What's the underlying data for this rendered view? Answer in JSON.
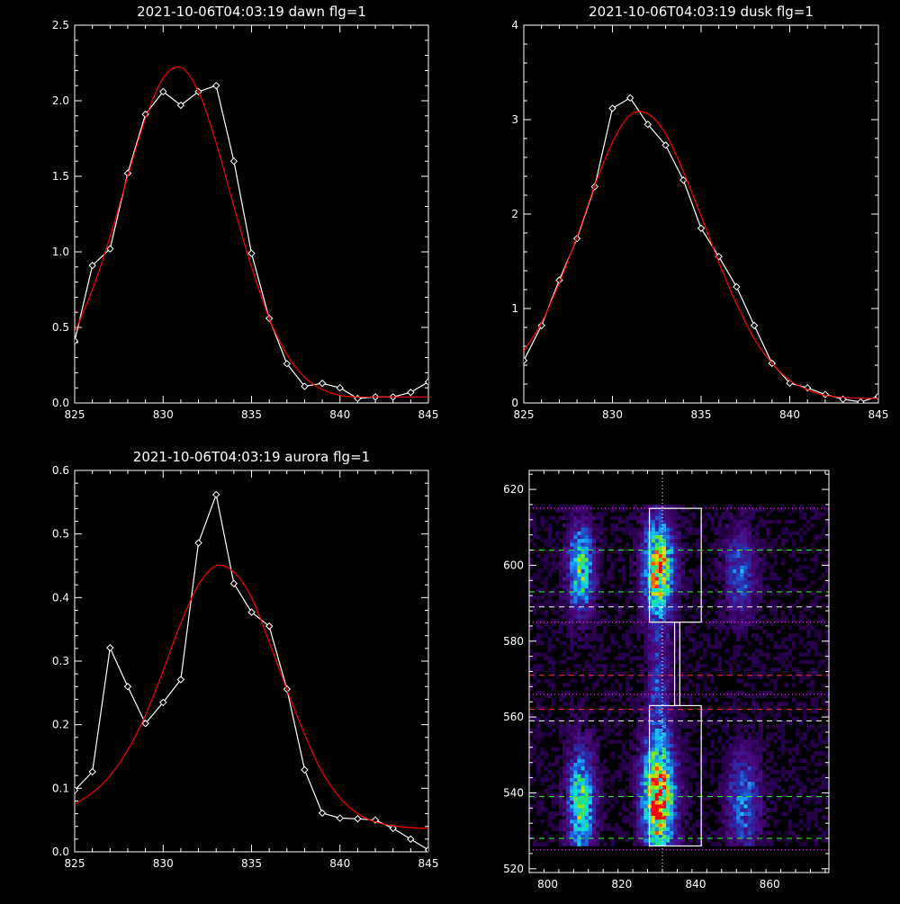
{
  "chart_data": [
    {
      "type": "line",
      "title": "2021-10-06T04:03:19 dawn flg=1",
      "xlim": [
        825,
        845
      ],
      "ylim": [
        0,
        2.5
      ],
      "xticks": [
        "825",
        "830",
        "835",
        "840",
        "845"
      ],
      "yticks": [
        "0.0",
        "0.5",
        "1.0",
        "1.5",
        "2.0",
        "2.5"
      ],
      "series": [
        {
          "color": "#ffffff",
          "markers": "diamond",
          "x": [
            825,
            826,
            827,
            828,
            829,
            830,
            831,
            832,
            833,
            834,
            835,
            836,
            837,
            838,
            839,
            840,
            841,
            842,
            843,
            844,
            845
          ],
          "y": [
            0.41,
            0.91,
            1.02,
            1.52,
            1.91,
            2.06,
            1.97,
            2.06,
            2.1,
            1.6,
            0.99,
            0.56,
            0.26,
            0.11,
            0.13,
            0.1,
            0.03,
            0.04,
            0.04,
            0.07,
            0.14
          ]
        },
        {
          "color": "#ff0000",
          "x": [
            825,
            826,
            827,
            828,
            829,
            830,
            831,
            832,
            833,
            834,
            835,
            836,
            837,
            838,
            839,
            840,
            841,
            842,
            843,
            844,
            845
          ],
          "y": [
            0.47,
            0.75,
            1.1,
            1.5,
            1.88,
            2.15,
            2.22,
            2.06,
            1.72,
            1.3,
            0.9,
            0.56,
            0.32,
            0.17,
            0.09,
            0.05,
            0.04,
            0.04,
            0.04,
            0.04,
            0.04
          ]
        }
      ]
    },
    {
      "type": "line",
      "title": "2021-10-06T04:03:19 dusk flg=1",
      "xlim": [
        825,
        845
      ],
      "ylim": [
        0,
        4
      ],
      "xticks": [
        "825",
        "830",
        "835",
        "840",
        "845"
      ],
      "yticks": [
        "0",
        "1",
        "2",
        "3",
        "4"
      ],
      "series": [
        {
          "color": "#ffffff",
          "markers": "diamond",
          "x": [
            825,
            826,
            827,
            828,
            829,
            830,
            831,
            832,
            833,
            834,
            835,
            836,
            837,
            838,
            839,
            840,
            841,
            842,
            843,
            844,
            845
          ],
          "y": [
            0.45,
            0.82,
            1.3,
            1.74,
            2.29,
            3.12,
            3.23,
            2.95,
            2.73,
            2.36,
            1.85,
            1.55,
            1.23,
            0.82,
            0.42,
            0.21,
            0.16,
            0.09,
            0.04,
            0.01,
            0.07
          ]
        },
        {
          "color": "#ff0000",
          "x": [
            825,
            826,
            827,
            828,
            829,
            830,
            831,
            832,
            833,
            834,
            835,
            836,
            837,
            838,
            839,
            840,
            841,
            842,
            843,
            844,
            845
          ],
          "y": [
            0.55,
            0.85,
            1.27,
            1.76,
            2.3,
            2.76,
            3.05,
            3.06,
            2.85,
            2.45,
            1.98,
            1.49,
            1.05,
            0.68,
            0.42,
            0.24,
            0.14,
            0.08,
            0.06,
            0.05,
            0.05
          ]
        }
      ]
    },
    {
      "type": "line",
      "title": "2021-10-06T04:03:19 aurora flg=1",
      "xlim": [
        825,
        845
      ],
      "ylim": [
        0,
        0.6
      ],
      "xticks": [
        "825",
        "830",
        "835",
        "840",
        "845"
      ],
      "yticks": [
        "0.0",
        "0.1",
        "0.2",
        "0.3",
        "0.4",
        "0.5",
        "0.6"
      ],
      "series": [
        {
          "color": "#ffffff",
          "markers": "diamond",
          "x": [
            825,
            826,
            827,
            828,
            829,
            830,
            831,
            832,
            833,
            834,
            835,
            836,
            837,
            838,
            839,
            840,
            841,
            842,
            843,
            844,
            845
          ],
          "y": [
            0.097,
            0.126,
            0.321,
            0.26,
            0.202,
            0.235,
            0.271,
            0.486,
            0.562,
            0.422,
            0.377,
            0.355,
            0.256,
            0.129,
            0.061,
            0.053,
            0.052,
            0.05,
            0.037,
            0.02,
            0.003
          ]
        },
        {
          "color": "#ff0000",
          "x": [
            825,
            826,
            827,
            828,
            829,
            830,
            831,
            832,
            833,
            834,
            835,
            836,
            837,
            838,
            839,
            840,
            841,
            842,
            843,
            844,
            845
          ],
          "y": [
            0.075,
            0.093,
            0.12,
            0.16,
            0.215,
            0.285,
            0.36,
            0.42,
            0.45,
            0.44,
            0.4,
            0.33,
            0.255,
            0.185,
            0.125,
            0.085,
            0.06,
            0.047,
            0.041,
            0.038,
            0.037
          ]
        }
      ]
    },
    {
      "type": "heatmap",
      "xlim": [
        795,
        876
      ],
      "ylim": [
        519,
        625
      ],
      "xticks": [
        "800",
        "820",
        "840",
        "860"
      ],
      "yticks": [
        "520",
        "540",
        "560",
        "580",
        "600",
        "620"
      ],
      "colormap": [
        "#000000",
        "#2a0050",
        "#4b0a80",
        "#2b2ba8",
        "#1f5fd6",
        "#1aa3ff",
        "#12e0e0",
        "#2ae06a",
        "#9fe80a",
        "#ffd200",
        "#ff5000",
        "#ff0000"
      ],
      "blobs": [
        {
          "x": 809,
          "y": 599,
          "sx": 2.5,
          "sy": 8,
          "a": 0.55
        },
        {
          "x": 830,
          "y": 599,
          "sx": 2.8,
          "sy": 9,
          "a": 0.8
        },
        {
          "x": 852,
          "y": 598,
          "sx": 3,
          "sy": 8,
          "a": 0.3
        },
        {
          "x": 809,
          "y": 537,
          "sx": 2.5,
          "sy": 10,
          "a": 0.6
        },
        {
          "x": 830,
          "y": 539,
          "sx": 3,
          "sy": 11,
          "a": 0.95
        },
        {
          "x": 853,
          "y": 538,
          "sx": 3,
          "sy": 9,
          "a": 0.35
        },
        {
          "x": 830,
          "y": 570,
          "sx": 2,
          "sy": 8,
          "a": 0.25
        }
      ],
      "boxes": [
        {
          "x0": 827.5,
          "x1": 841.5,
          "y0": 585,
          "y1": 615
        },
        {
          "x0": 827.5,
          "x1": 841.5,
          "y0": 526,
          "y1": 563
        },
        {
          "x0": 834.3,
          "x1": 835.7,
          "y0": 563,
          "y1": 585
        }
      ],
      "hlines": [
        {
          "y": 615,
          "color": "#ff40ff",
          "style": "dotted"
        },
        {
          "y": 604,
          "color": "#33ff33",
          "style": "dashed"
        },
        {
          "y": 593,
          "color": "#33ff33",
          "style": "dashed"
        },
        {
          "y": 589,
          "color": "#ffffff",
          "style": "dashed"
        },
        {
          "y": 585,
          "color": "#ff40ff",
          "style": "dotted"
        },
        {
          "y": 571,
          "color": "#ff3030",
          "style": "dashed"
        },
        {
          "y": 566,
          "color": "#ff40ff",
          "style": "dotted"
        },
        {
          "y": 562,
          "color": "#ff3030",
          "style": "dashed"
        },
        {
          "y": 559,
          "color": "#ffffff",
          "style": "dashed"
        },
        {
          "y": 539,
          "color": "#33ff33",
          "style": "dashed"
        },
        {
          "y": 528,
          "color": "#33ff33",
          "style": "dashed"
        },
        {
          "y": 525,
          "color": "#ff40ff",
          "style": "dotted"
        }
      ],
      "vlines": [
        {
          "x": 831,
          "color": "#ffffff",
          "style": "dotted"
        }
      ]
    }
  ]
}
